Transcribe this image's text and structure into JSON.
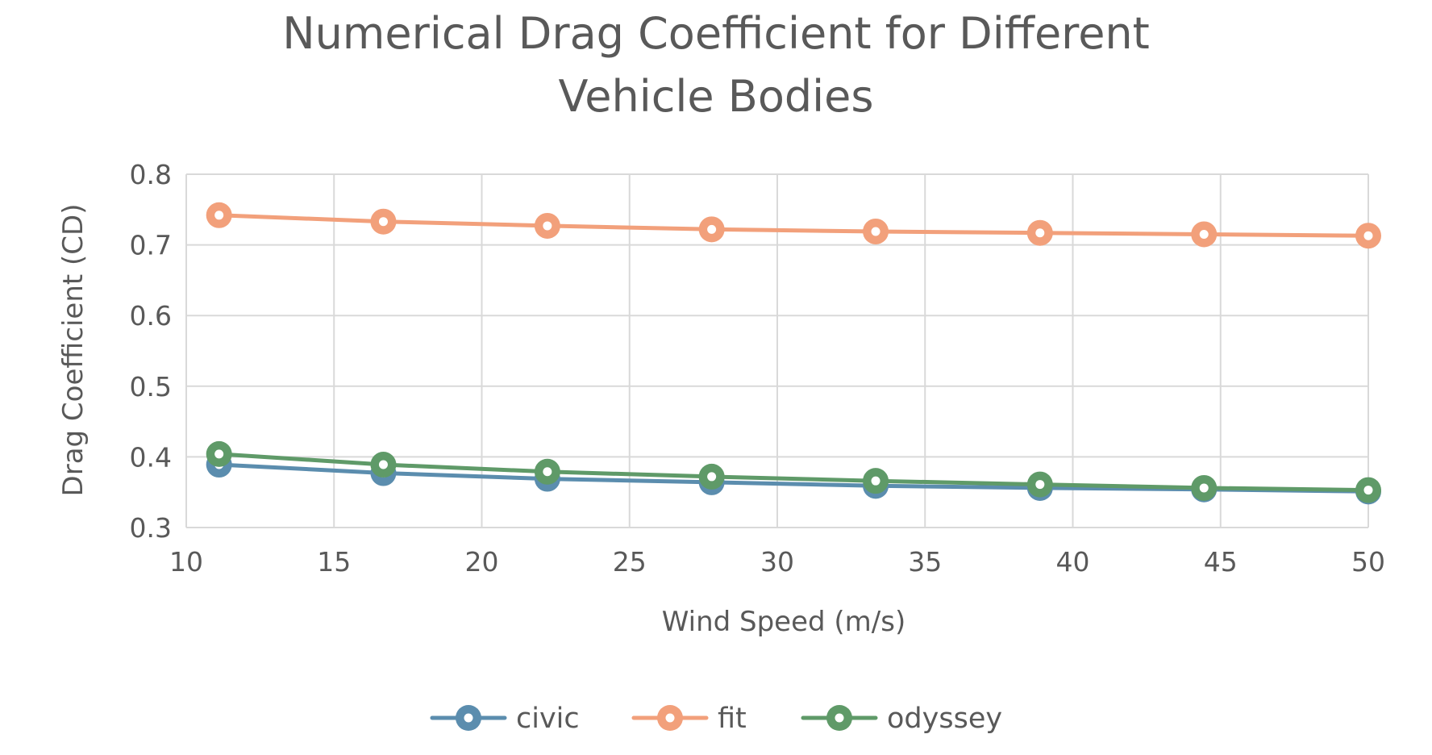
{
  "chart_data": {
    "type": "line",
    "title": "Numerical Drag Coefficient for Different Vehicle Bodies",
    "title_lines": [
      "Numerical Drag Coefficient for Different",
      "Vehicle Bodies"
    ],
    "xlabel": "Wind Speed (m/s)",
    "ylabel": "Drag Coefficient (CD)",
    "xlim": [
      10,
      50
    ],
    "ylim": [
      0.3,
      0.8
    ],
    "x_ticks": [
      10,
      15,
      20,
      25,
      30,
      35,
      40,
      45,
      50
    ],
    "x_tick_labels": [
      "10",
      "15",
      "20",
      "25",
      "30",
      "35",
      "40",
      "45",
      "50"
    ],
    "y_ticks": [
      0.3,
      0.4,
      0.5,
      0.6,
      0.7,
      0.8
    ],
    "y_tick_labels": [
      "0.3",
      "0.4",
      "0.5",
      "0.6",
      "0.7",
      "0.8"
    ],
    "grid": true,
    "legend_position": "bottom",
    "x": [
      11.11,
      16.67,
      22.22,
      27.78,
      33.33,
      38.89,
      44.44,
      50
    ],
    "series": [
      {
        "name": "civic",
        "color": "#5B8DAE",
        "values": [
          0.389,
          0.377,
          0.369,
          0.364,
          0.359,
          0.356,
          0.354,
          0.351
        ]
      },
      {
        "name": "fit",
        "color": "#F2A07B",
        "values": [
          0.742,
          0.733,
          0.727,
          0.722,
          0.719,
          0.717,
          0.715,
          0.713
        ]
      },
      {
        "name": "odyssey",
        "color": "#5F9A68",
        "values": [
          0.404,
          0.389,
          0.379,
          0.372,
          0.366,
          0.361,
          0.356,
          0.353
        ]
      }
    ]
  }
}
